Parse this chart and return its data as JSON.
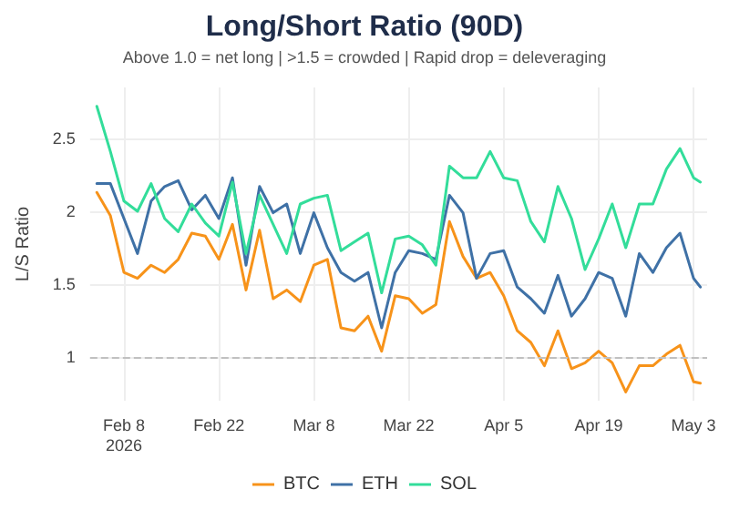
{
  "chart_data": {
    "type": "line",
    "title": "Long/Short Ratio (90D)",
    "subtitle": "Above 1.0 = net long | >1.5 = crowded | Rapid drop = deleveraging",
    "ylabel": "L/S Ratio",
    "x": [
      "2026-02-04",
      "2026-02-06",
      "2026-02-08",
      "2026-02-10",
      "2026-02-12",
      "2026-02-14",
      "2026-02-16",
      "2026-02-18",
      "2026-02-20",
      "2026-02-22",
      "2026-02-24",
      "2026-02-26",
      "2026-02-28",
      "2026-03-02",
      "2026-03-04",
      "2026-03-06",
      "2026-03-08",
      "2026-03-10",
      "2026-03-12",
      "2026-03-14",
      "2026-03-16",
      "2026-03-18",
      "2026-03-20",
      "2026-03-22",
      "2026-03-24",
      "2026-03-26",
      "2026-03-28",
      "2026-03-30",
      "2026-04-01",
      "2026-04-03",
      "2026-04-05",
      "2026-04-07",
      "2026-04-09",
      "2026-04-11",
      "2026-04-13",
      "2026-04-15",
      "2026-04-17",
      "2026-04-19",
      "2026-04-21",
      "2026-04-23",
      "2026-04-25",
      "2026-04-27",
      "2026-04-29",
      "2026-05-01",
      "2026-05-03",
      "2026-05-04"
    ],
    "series": [
      {
        "name": "BTC",
        "color": "#f7931a",
        "values": [
          2.13,
          1.97,
          1.58,
          1.54,
          1.63,
          1.58,
          1.67,
          1.85,
          1.83,
          1.67,
          1.91,
          1.46,
          1.87,
          1.4,
          1.46,
          1.38,
          1.63,
          1.67,
          1.2,
          1.18,
          1.28,
          1.04,
          1.42,
          1.4,
          1.3,
          1.36,
          1.93,
          1.69,
          1.54,
          1.58,
          1.42,
          1.18,
          1.1,
          0.94,
          1.18,
          0.92,
          0.96,
          1.04,
          0.96,
          0.76,
          0.94,
          0.94,
          1.02,
          1.08,
          0.83,
          0.82
        ]
      },
      {
        "name": "ETH",
        "color": "#3f71a6",
        "values": [
          2.19,
          2.19,
          1.95,
          1.71,
          2.07,
          2.17,
          2.21,
          2.01,
          2.11,
          1.95,
          2.23,
          1.63,
          2.17,
          1.99,
          2.05,
          1.71,
          1.99,
          1.75,
          1.58,
          1.52,
          1.58,
          1.2,
          1.58,
          1.73,
          1.71,
          1.67,
          2.11,
          1.99,
          1.54,
          1.71,
          1.73,
          1.48,
          1.4,
          1.3,
          1.56,
          1.28,
          1.4,
          1.58,
          1.54,
          1.28,
          1.71,
          1.58,
          1.75,
          1.85,
          1.54,
          1.48
        ]
      },
      {
        "name": "SOL",
        "color": "#33dd9a",
        "values": [
          2.72,
          2.41,
          2.07,
          2.0,
          2.19,
          1.95,
          1.86,
          2.05,
          1.92,
          1.83,
          2.2,
          1.71,
          2.11,
          1.91,
          1.71,
          2.05,
          2.09,
          2.11,
          1.73,
          1.79,
          1.85,
          1.44,
          1.81,
          1.83,
          1.77,
          1.63,
          2.31,
          2.23,
          2.23,
          2.41,
          2.23,
          2.21,
          1.93,
          1.79,
          2.17,
          1.95,
          1.6,
          1.81,
          2.05,
          1.75,
          2.05,
          2.05,
          2.29,
          2.43,
          2.23,
          2.2
        ]
      }
    ],
    "xlim": [
      "2026-02-03",
      "2026-05-05"
    ],
    "xticks": [
      {
        "value": "2026-02-08",
        "label": "Feb 8\n2026"
      },
      {
        "value": "2026-02-22",
        "label": "Feb 22"
      },
      {
        "value": "2026-03-08",
        "label": "Mar 8"
      },
      {
        "value": "2026-03-22",
        "label": "Mar 22"
      },
      {
        "value": "2026-04-05",
        "label": "Apr 5"
      },
      {
        "value": "2026-04-19",
        "label": "Apr 19"
      },
      {
        "value": "2026-05-03",
        "label": "May 3"
      }
    ],
    "ylim": [
      0.7,
      2.85
    ],
    "yticks": [
      1,
      1.5,
      2,
      2.5
    ],
    "ref_lines": [
      {
        "axis": "y",
        "value": 1,
        "color": "#c0c0c0",
        "line_style": "dashed"
      }
    ],
    "grid": true,
    "legend": "bottom",
    "marker": "none",
    "line_style": "solid"
  }
}
